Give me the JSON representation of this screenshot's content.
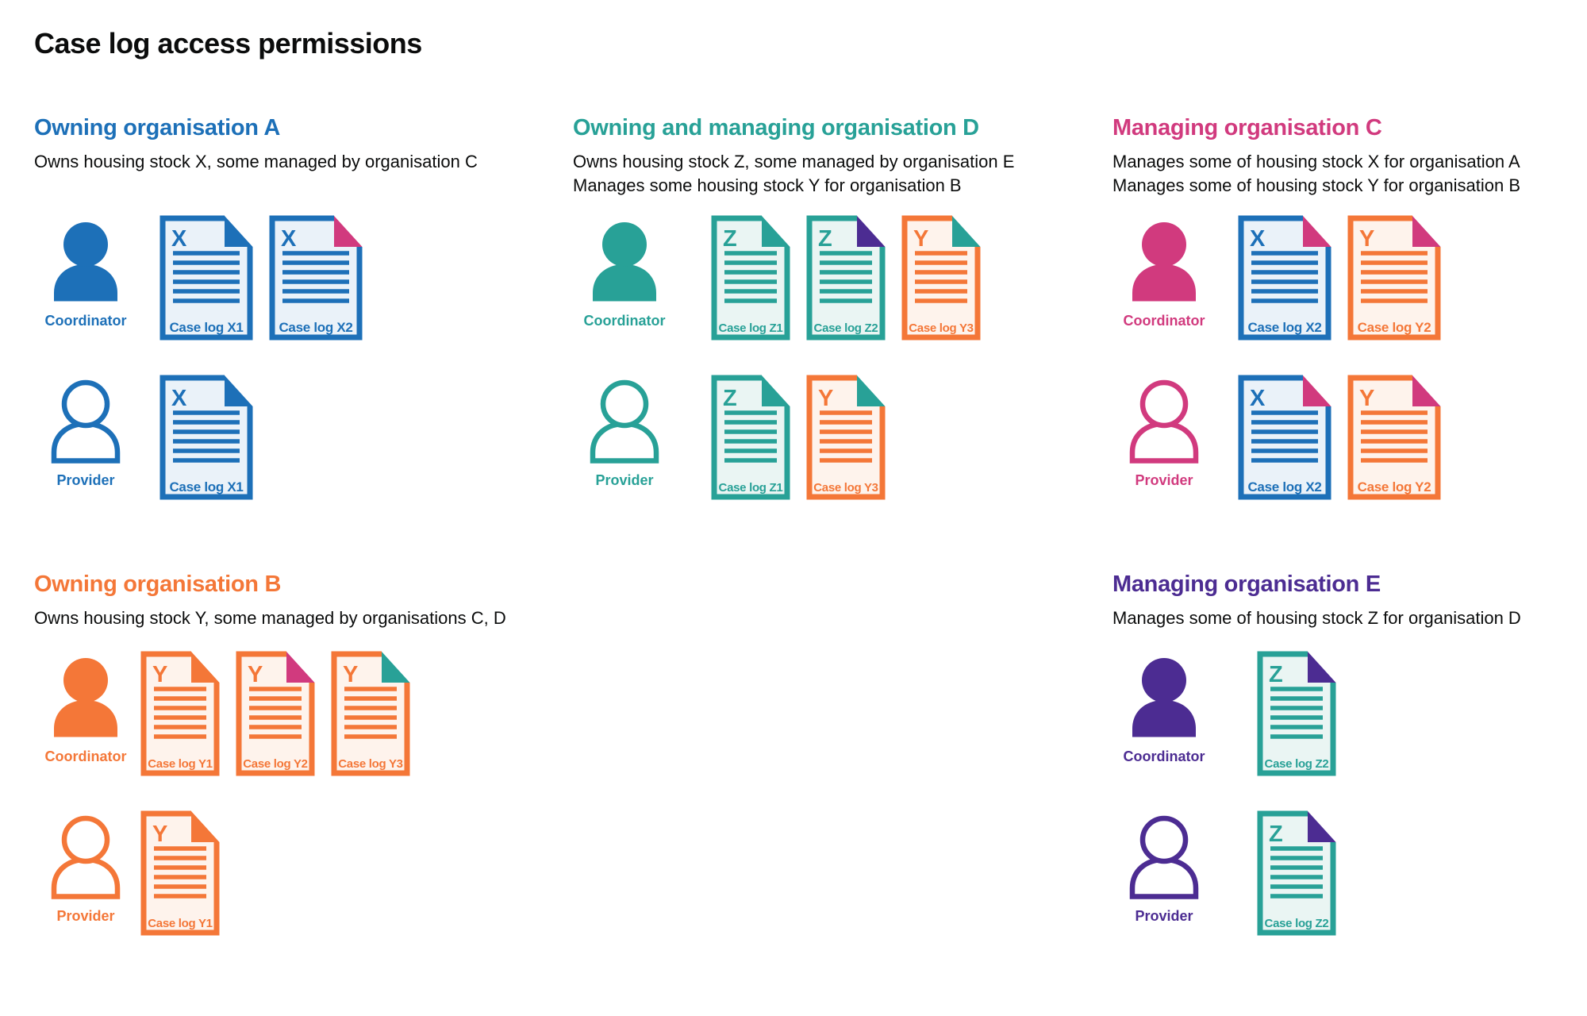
{
  "title": "Case log access permissions",
  "colors": {
    "blue": "#1d70b8",
    "teal": "#28a197",
    "pink": "#d13a7e",
    "orange": "#f47738",
    "purple": "#4c2c92",
    "text": "#0b0c0c"
  },
  "tints": {
    "blue": "#eaf2f9",
    "teal": "#eaf5f3",
    "orange": "#fef3ec"
  },
  "sections": [
    {
      "id": "A",
      "title": "Owning organisation A",
      "color": "blue",
      "description": [
        "Owns housing stock X, some managed by organisation C"
      ],
      "rows": [
        {
          "role": "Coordinator",
          "person": "filled",
          "docs": [
            {
              "letter": "X",
              "label": "Case log X1",
              "page": "blue",
              "corner": "blue"
            },
            {
              "letter": "X",
              "label": "Case log X2",
              "page": "blue",
              "corner": "pink"
            }
          ]
        },
        {
          "role": "Provider",
          "person": "outline",
          "docs": [
            {
              "letter": "X",
              "label": "Case log X1",
              "page": "blue",
              "corner": "blue"
            }
          ]
        }
      ]
    },
    {
      "id": "D",
      "title": "Owning and managing organisation D",
      "color": "teal",
      "description": [
        "Owns housing stock Z, some managed by organisation E",
        "Manages some housing stock Y for organisation B"
      ],
      "rows": [
        {
          "role": "Coordinator",
          "person": "filled",
          "docs": [
            {
              "letter": "Z",
              "label": "Case log Z1",
              "page": "teal",
              "corner": "teal"
            },
            {
              "letter": "Z",
              "label": "Case log Z2",
              "page": "teal",
              "corner": "purple"
            },
            {
              "letter": "Y",
              "label": "Case log Y3",
              "page": "orange",
              "corner": "teal"
            }
          ]
        },
        {
          "role": "Provider",
          "person": "outline",
          "docs": [
            {
              "letter": "Z",
              "label": "Case log Z1",
              "page": "teal",
              "corner": "teal"
            },
            {
              "letter": "Y",
              "label": "Case log Y3",
              "page": "orange",
              "corner": "teal"
            }
          ]
        }
      ]
    },
    {
      "id": "C",
      "title": "Managing organisation C",
      "color": "pink",
      "description": [
        "Manages some of housing stock X for organisation A",
        "Manages some of housing stock Y for organisation B"
      ],
      "rows": [
        {
          "role": "Coordinator",
          "person": "filled",
          "docs": [
            {
              "letter": "X",
              "label": "Case log X2",
              "page": "blue",
              "corner": "pink"
            },
            {
              "letter": "Y",
              "label": "Case log Y2",
              "page": "orange",
              "corner": "pink"
            }
          ]
        },
        {
          "role": "Provider",
          "person": "outline",
          "docs": [
            {
              "letter": "X",
              "label": "Case log X2",
              "page": "blue",
              "corner": "pink"
            },
            {
              "letter": "Y",
              "label": "Case log Y2",
              "page": "orange",
              "corner": "pink"
            }
          ]
        }
      ]
    },
    {
      "id": "B",
      "title": "Owning organisation B",
      "color": "orange",
      "description": [
        "Owns housing stock Y, some managed by organisations C, D"
      ],
      "rows": [
        {
          "role": "Coordinator",
          "person": "filled",
          "docs": [
            {
              "letter": "Y",
              "label": "Case log Y1",
              "page": "orange",
              "corner": "orange"
            },
            {
              "letter": "Y",
              "label": "Case log Y2",
              "page": "orange",
              "corner": "pink"
            },
            {
              "letter": "Y",
              "label": "Case log Y3",
              "page": "orange",
              "corner": "teal"
            }
          ]
        },
        {
          "role": "Provider",
          "person": "outline",
          "docs": [
            {
              "letter": "Y",
              "label": "Case log Y1",
              "page": "orange",
              "corner": "orange"
            }
          ]
        }
      ]
    },
    {
      "id": "E",
      "title": "Managing organisation E",
      "color": "purple",
      "description": [
        "Manages some of housing stock Z for organisation D"
      ],
      "rows": [
        {
          "role": "Coordinator",
          "person": "filled",
          "docs": [
            {
              "letter": "Z",
              "label": "Case log Z2",
              "page": "teal",
              "corner": "purple"
            }
          ]
        },
        {
          "role": "Provider",
          "person": "outline",
          "docs": [
            {
              "letter": "Z",
              "label": "Case log Z2",
              "page": "teal",
              "corner": "purple"
            }
          ]
        }
      ]
    }
  ]
}
